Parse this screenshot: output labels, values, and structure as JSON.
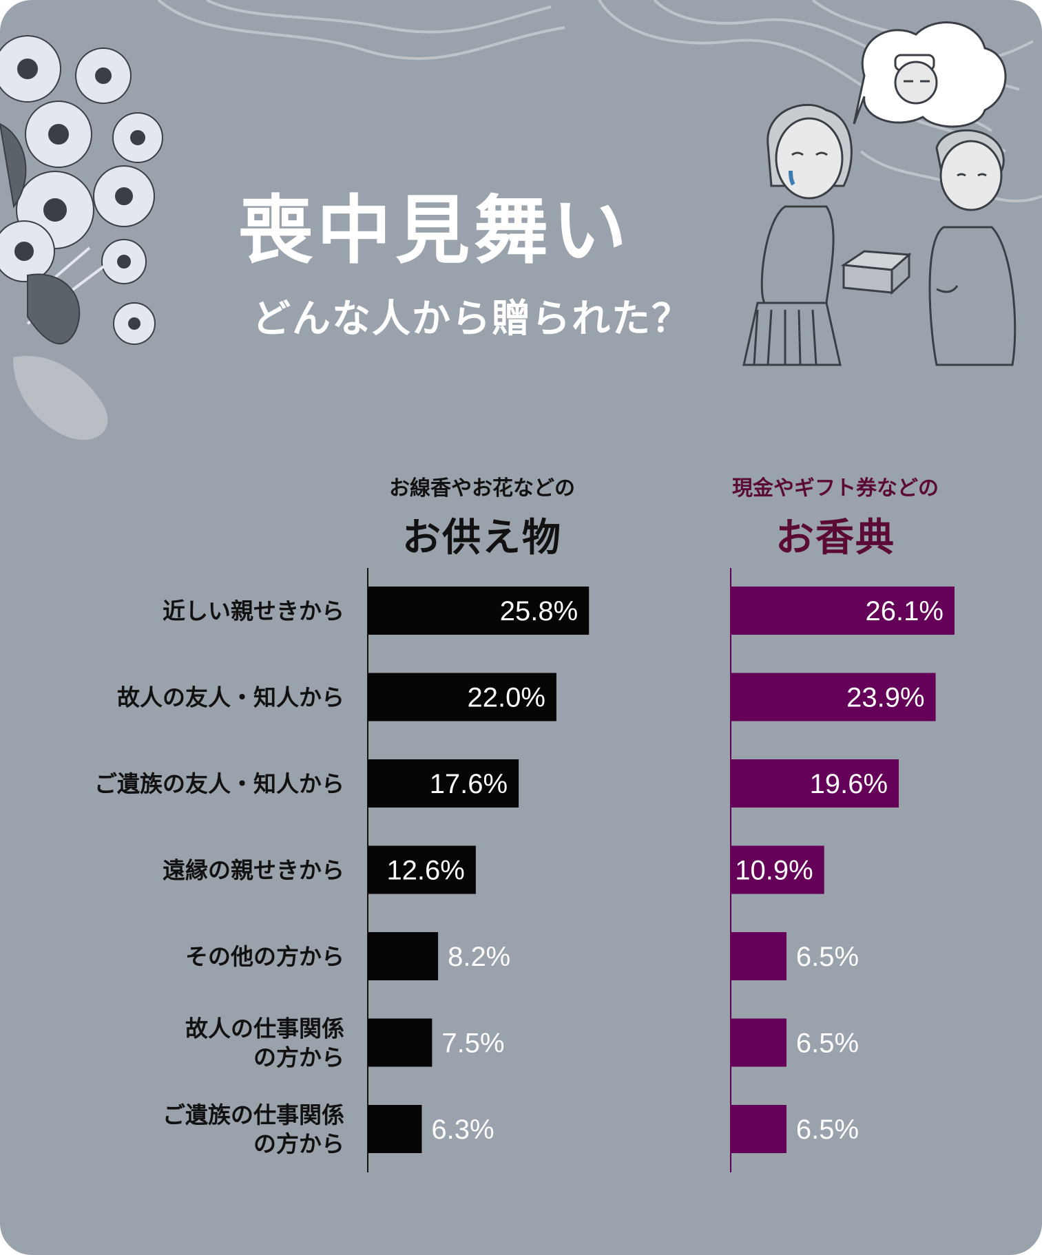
{
  "title": "喪中見舞い",
  "subtitle": "どんな人から贈られた？",
  "colors": {
    "background": "#9aa3ac",
    "left_bar": "#050505",
    "right_bar": "#650059",
    "right_heading": "#5a0a35"
  },
  "illustrations": [
    "chrysanthemum-flowers",
    "woman-crying-receiving-gift",
    "elderly-woman",
    "thought-bubble-with-grandfather"
  ],
  "chart_data": [
    {
      "type": "bar",
      "orientation": "horizontal",
      "heading_small": "お線香やお花などの",
      "heading_big": "お供え物",
      "categories": [
        "近しい親せきから",
        "故人の友人・知人から",
        "ご遺族の友人・知人から",
        "遠縁の親せきから",
        "その他の方から",
        "故人の仕事関係の方から",
        "ご遺族の仕事関係の方から"
      ],
      "category_lines": [
        [
          "近しい親せきから"
        ],
        [
          "故人の友人・知人から"
        ],
        [
          "ご遺族の友人・知人から"
        ],
        [
          "遠縁の親せきから"
        ],
        [
          "その他の方から"
        ],
        [
          "故人の仕事関係",
          "の方から"
        ],
        [
          "ご遺族の仕事関係",
          "の方から"
        ]
      ],
      "values": [
        25.8,
        22.0,
        17.6,
        12.6,
        8.2,
        7.5,
        6.3
      ],
      "labels": [
        "25.8%",
        "22.0%",
        "17.6%",
        "12.6%",
        "8.2%",
        "7.5%",
        "6.3%"
      ],
      "unit": "%",
      "color": "#050505"
    },
    {
      "type": "bar",
      "orientation": "horizontal",
      "heading_small": "現金やギフト券などの",
      "heading_big": "お香典",
      "categories": [
        "近しい親せきから",
        "故人の友人・知人から",
        "ご遺族の友人・知人から",
        "遠縁の親せきから",
        "その他の方から",
        "故人の仕事関係の方から",
        "ご遺族の仕事関係の方から"
      ],
      "values": [
        26.1,
        23.9,
        19.6,
        10.9,
        6.5,
        6.5,
        6.5
      ],
      "labels": [
        "26.1%",
        "23.9%",
        "19.6%",
        "10.9%",
        "6.5%",
        "6.5%",
        "6.5%"
      ],
      "unit": "%",
      "color": "#650059"
    }
  ]
}
